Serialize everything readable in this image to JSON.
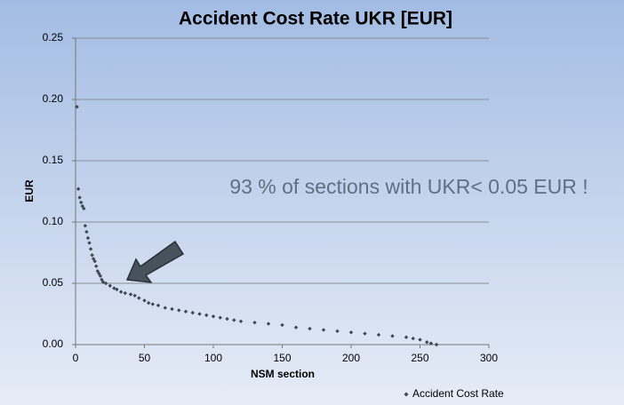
{
  "chart_data": {
    "type": "scatter",
    "title": "Accident Cost Rate UKR [EUR]",
    "x_label": "NSM section",
    "y_label": "EUR",
    "annotation": "93 % of sections with UKR< 0.05 EUR !",
    "xlim": [
      0,
      300
    ],
    "xticks": [
      0,
      50,
      100,
      150,
      200,
      250,
      300
    ],
    "ylim": [
      0,
      0.25
    ],
    "yticks": [
      {
        "value": 0,
        "label": "0.00"
      },
      {
        "value": 0.05,
        "label": "0.05"
      },
      {
        "value": 0.1,
        "label": "0.10"
      },
      {
        "value": 0.15,
        "label": "0.15"
      },
      {
        "value": 0.2,
        "label": "0.20"
      },
      {
        "value": 0.25,
        "label": "0.25"
      }
    ],
    "grid": true,
    "legend": "bottom-right",
    "series": [
      {
        "name": "Accident Cost Rate",
        "color": "#3e4853",
        "x": [
          1,
          2,
          3,
          4,
          5,
          6,
          7,
          8,
          9,
          10,
          11,
          12,
          13,
          14,
          15,
          16,
          17,
          18,
          19,
          20,
          22,
          25,
          28,
          30,
          33,
          36,
          40,
          43,
          46,
          50,
          53,
          56,
          60,
          65,
          70,
          75,
          80,
          85,
          90,
          95,
          100,
          105,
          110,
          115,
          120,
          130,
          140,
          150,
          160,
          170,
          180,
          190,
          200,
          210,
          220,
          230,
          240,
          245,
          250,
          255,
          258,
          262
        ],
        "values": [
          0.194,
          0.127,
          0.12,
          0.116,
          0.113,
          0.111,
          0.097,
          0.092,
          0.087,
          0.083,
          0.078,
          0.073,
          0.07,
          0.068,
          0.064,
          0.06,
          0.058,
          0.056,
          0.053,
          0.051,
          0.05,
          0.048,
          0.046,
          0.045,
          0.043,
          0.042,
          0.041,
          0.04,
          0.038,
          0.036,
          0.034,
          0.033,
          0.032,
          0.03,
          0.029,
          0.028,
          0.027,
          0.026,
          0.025,
          0.024,
          0.023,
          0.022,
          0.021,
          0.02,
          0.019,
          0.018,
          0.017,
          0.016,
          0.014,
          0.013,
          0.012,
          0.011,
          0.01,
          0.009,
          0.008,
          0.007,
          0.006,
          0.005,
          0.004,
          0.002,
          0.001,
          0.0
        ]
      }
    ]
  }
}
